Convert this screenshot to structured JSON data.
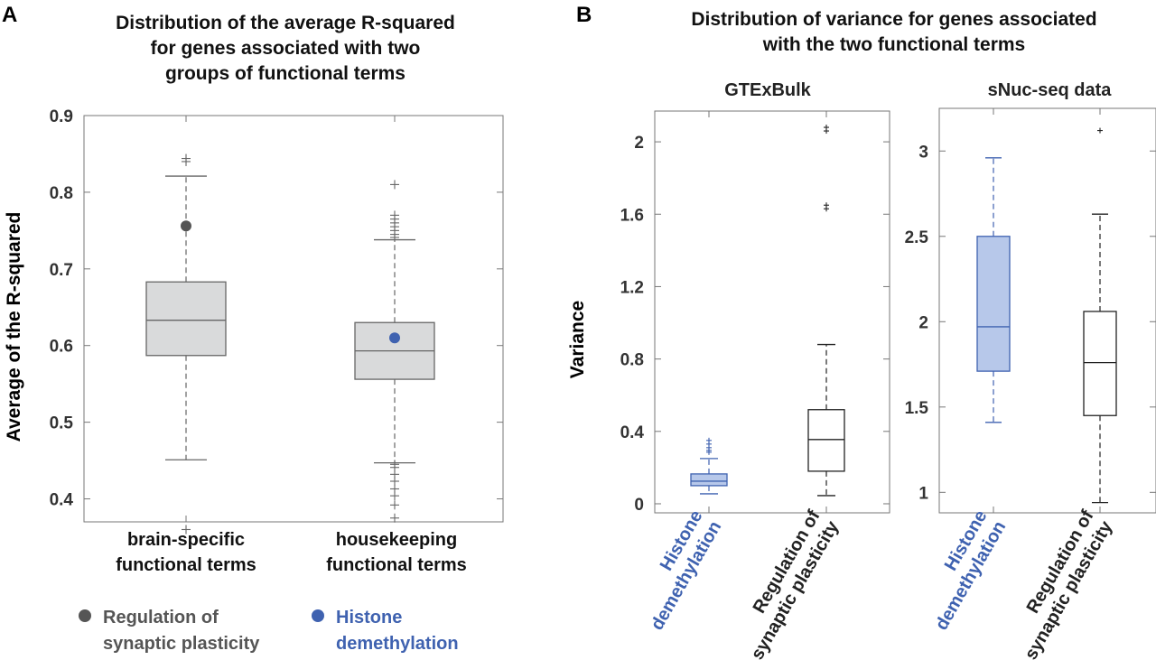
{
  "colors": {
    "gray_box": "#d9dadb",
    "gray_line": "#666666",
    "gray_dot": "#555555",
    "blue": "#3f62b0",
    "blue_fill": "#b7c8ea",
    "black": "#222222"
  },
  "panel_a": {
    "letter": "A",
    "title_lines": [
      "Distribution of the average R-squared",
      "for genes associated with two",
      "groups of functional terms"
    ],
    "ylabel": "Average of the R-squared"
  },
  "panel_b": {
    "letter": "B",
    "title_lines": [
      "Distribution of variance for genes associated",
      "with the two functional terms"
    ],
    "ylabel": "Variance"
  },
  "legend": {
    "item1_lines": [
      "Regulation of",
      "synaptic plasticity"
    ],
    "item2_lines": [
      "Histone",
      "demethylation"
    ]
  },
  "chart_data": [
    {
      "type": "box",
      "panel": "A",
      "title": "Distribution of the average R-squared for genes associated with two groups of functional terms",
      "ylabel": "Average of the R-squared",
      "ylim": [
        0.37,
        0.9
      ],
      "yticks": [
        0.4,
        0.5,
        0.6,
        0.7,
        0.8,
        0.9
      ],
      "categories": [
        {
          "label_lines": [
            "brain-specific",
            "functional terms"
          ],
          "q1": 0.587,
          "median": 0.633,
          "q3": 0.683,
          "whisker_low": 0.451,
          "whisker_high": 0.821,
          "outliers": [
            0.36,
            0.84,
            0.844
          ],
          "marker": {
            "value": 0.756,
            "name": "Regulation of synaptic plasticity",
            "color": "gray"
          }
        },
        {
          "label_lines": [
            "housekeeping",
            "functional terms"
          ],
          "q1": 0.556,
          "median": 0.593,
          "q3": 0.63,
          "whisker_low": 0.447,
          "whisker_high": 0.738,
          "outliers": [
            0.375,
            0.392,
            0.404,
            0.413,
            0.423,
            0.432,
            0.441,
            0.445,
            0.741,
            0.745,
            0.75,
            0.755,
            0.76,
            0.765,
            0.77,
            0.81
          ],
          "marker": {
            "value": 0.61,
            "name": "Histone demethylation",
            "color": "blue"
          }
        }
      ]
    },
    {
      "type": "box",
      "panel": "B",
      "title": "GTExBulk",
      "ylabel": "Variance",
      "ylim": [
        -0.05,
        2.17
      ],
      "yticks": [
        0,
        0.4,
        0.8,
        1.2,
        1.6,
        2
      ],
      "categories": [
        {
          "label_lines": [
            "Histone",
            "demethylation"
          ],
          "color": "blue",
          "q1": 0.1,
          "median": 0.125,
          "q3": 0.165,
          "whisker_low": 0.055,
          "whisker_high": 0.25,
          "outliers": [
            0.285,
            0.295,
            0.31,
            0.33,
            0.35
          ]
        },
        {
          "label_lines": [
            "Regulation of",
            "synaptic plasticity"
          ],
          "color": "black",
          "q1": 0.18,
          "median": 0.355,
          "q3": 0.52,
          "whisker_low": 0.045,
          "whisker_high": 0.88,
          "outliers": [
            1.63,
            1.65,
            2.06,
            2.08
          ]
        }
      ]
    },
    {
      "type": "box",
      "panel": "B",
      "title": "sNuc-seq data",
      "ylabel": "",
      "ylim": [
        0.88,
        3.25
      ],
      "yticks": [
        1,
        1.5,
        2,
        2.5,
        3
      ],
      "categories": [
        {
          "label_lines": [
            "Histone",
            "demethylation"
          ],
          "color": "blue",
          "q1": 1.71,
          "median": 1.97,
          "q3": 2.5,
          "whisker_low": 1.41,
          "whisker_high": 2.96,
          "outliers": []
        },
        {
          "label_lines": [
            "Regulation of",
            "synaptic plasticity"
          ],
          "color": "black",
          "q1": 1.45,
          "median": 1.76,
          "q3": 2.06,
          "whisker_low": 0.94,
          "whisker_high": 2.63,
          "outliers": [
            3.12
          ]
        }
      ]
    }
  ]
}
